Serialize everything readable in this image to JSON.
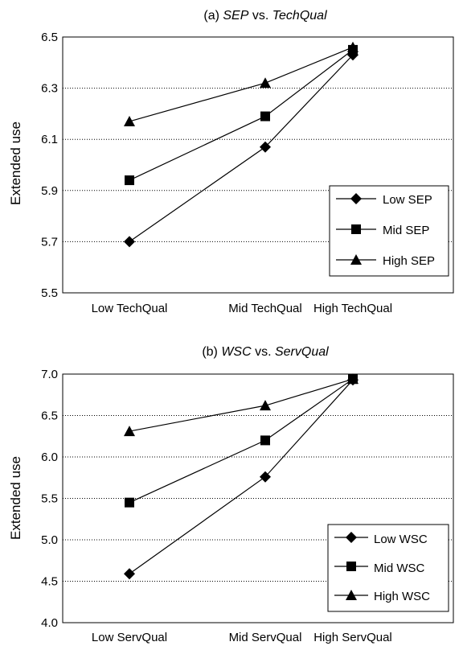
{
  "chart_data": [
    {
      "type": "line",
      "title_prefix": "(a) ",
      "title_var1": "SEP",
      "title_mid": " vs. ",
      "title_var2": "TechQual",
      "ylabel": "Extended use",
      "xlabel": "",
      "categories": [
        "Low TechQual",
        "Mid TechQual",
        "High TechQual"
      ],
      "ylim": [
        5.5,
        6.5
      ],
      "yticks": [
        "5.5",
        "5.7",
        "5.9",
        "6.1",
        "6.3",
        "6.5"
      ],
      "grid": "horizontal dotted",
      "legend_position": "bottom-right",
      "series": [
        {
          "name": "Low SEP",
          "marker": "diamond",
          "values": [
            5.7,
            6.07,
            6.43
          ]
        },
        {
          "name": "Mid SEP",
          "marker": "square",
          "values": [
            5.94,
            6.19,
            6.45
          ]
        },
        {
          "name": "High SEP",
          "marker": "triangle",
          "values": [
            6.17,
            6.32,
            6.46
          ]
        }
      ]
    },
    {
      "type": "line",
      "title_prefix": "(b) ",
      "title_var1": "WSC",
      "title_mid": " vs. ",
      "title_var2": "ServQual",
      "ylabel": "Extended use",
      "xlabel": "",
      "categories": [
        "Low ServQual",
        "Mid ServQual",
        "High ServQual"
      ],
      "ylim": [
        4.0,
        7.0
      ],
      "yticks": [
        "4.0",
        "4.5",
        "5.0",
        "5.5",
        "6.0",
        "6.5",
        "7.0"
      ],
      "grid": "horizontal dotted",
      "legend_position": "bottom-right",
      "series": [
        {
          "name": "Low WSC",
          "marker": "diamond",
          "values": [
            4.59,
            5.76,
            6.93
          ]
        },
        {
          "name": "Mid WSC",
          "marker": "square",
          "values": [
            5.45,
            6.2,
            6.94
          ]
        },
        {
          "name": "High WSC",
          "marker": "triangle",
          "values": [
            6.31,
            6.62,
            6.94
          ]
        }
      ]
    }
  ]
}
